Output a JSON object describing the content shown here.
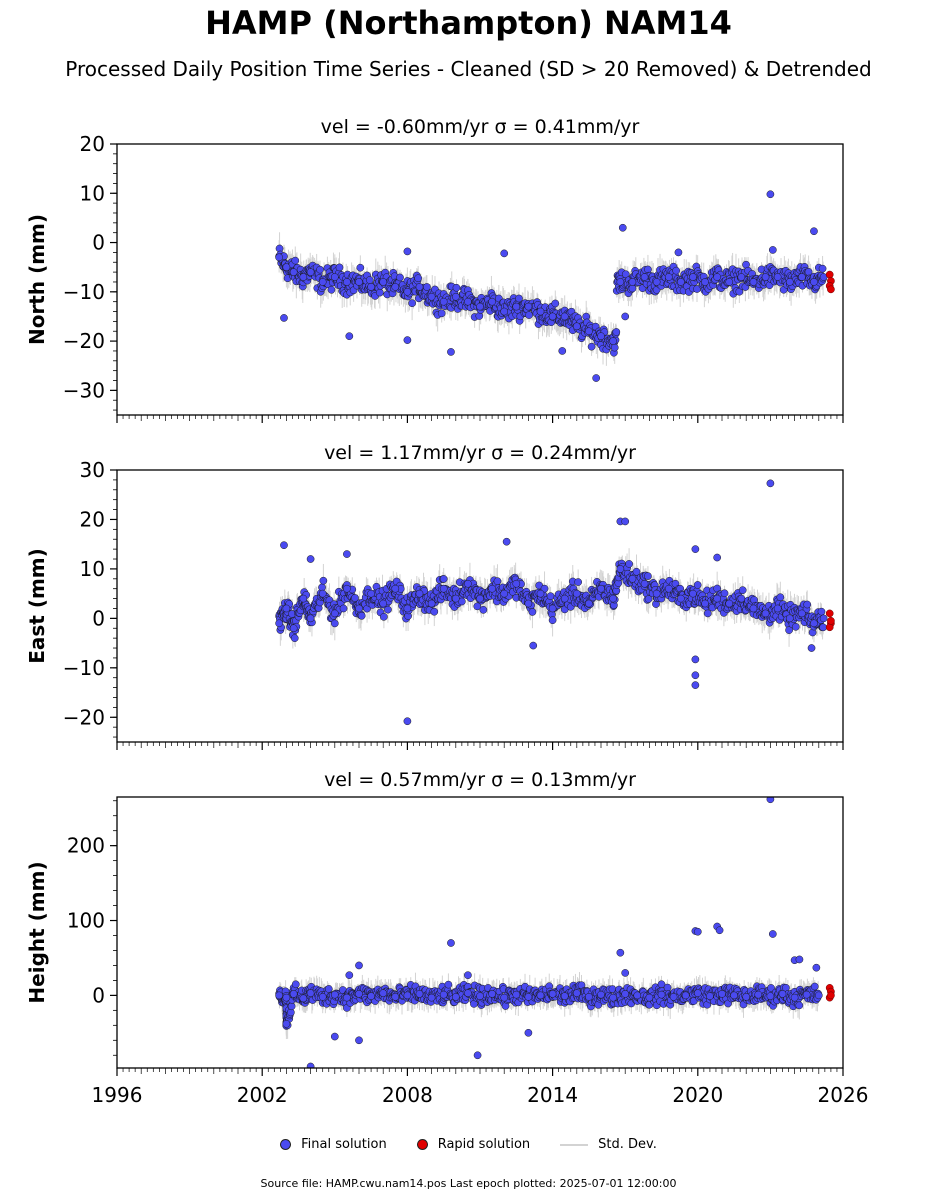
{
  "title": "HAMP (Northampton) NAM14",
  "subtitle": "Processed Daily Position Time Series - Cleaned (SD > 20 Removed) & Detrended",
  "source_note": "Source file: HAMP.cwu.nam14.pos  Last epoch plotted: 2025-07-01 12:00:00",
  "colors": {
    "final": "#4a4af0",
    "rapid": "#e00000",
    "stddev": "#d3d3d3",
    "edge": "#1a1a1a"
  },
  "chart_data": [
    {
      "type": "scatter",
      "title": "vel = -0.60mm/yr   σ = 0.41mm/yr",
      "ylabel": "North (mm)",
      "xlim": [
        1996,
        2026
      ],
      "ylim": [
        -35,
        20
      ],
      "xticks": [
        "",
        "",
        "",
        "",
        "",
        ""
      ],
      "yticks": [
        "20",
        "10",
        "0",
        "−10",
        "−20",
        "−30"
      ],
      "ytick_values": [
        20,
        10,
        0,
        -10,
        -20,
        -30
      ],
      "series": [
        {
          "name": "Final solution",
          "points": [
            [
              2002.7,
              -3
            ],
            [
              2003.0,
              -5
            ],
            [
              2003.3,
              -6
            ],
            [
              2003.7,
              -7
            ],
            [
              2004.0,
              -6
            ],
            [
              2004.5,
              -8
            ],
            [
              2005.0,
              -7
            ],
            [
              2005.5,
              -8
            ],
            [
              2006.0,
              -8
            ],
            [
              2006.5,
              -9
            ],
            [
              2007.0,
              -8
            ],
            [
              2007.5,
              -9
            ],
            [
              2008.0,
              -10
            ],
            [
              2008.5,
              -9
            ],
            [
              2009.0,
              -11
            ],
            [
              2009.5,
              -12
            ],
            [
              2010.0,
              -11
            ],
            [
              2010.5,
              -12
            ],
            [
              2011.0,
              -13
            ],
            [
              2011.5,
              -12
            ],
            [
              2012.0,
              -14
            ],
            [
              2012.5,
              -13
            ],
            [
              2013.0,
              -13
            ],
            [
              2013.5,
              -14
            ],
            [
              2014.0,
              -15
            ],
            [
              2014.5,
              -15
            ],
            [
              2015.0,
              -17
            ],
            [
              2015.5,
              -18
            ],
            [
              2016.0,
              -19
            ],
            [
              2016.5,
              -20
            ],
            [
              2016.8,
              -8
            ],
            [
              2017.3,
              -8
            ],
            [
              2017.8,
              -7
            ],
            [
              2018.3,
              -8
            ],
            [
              2018.8,
              -7
            ],
            [
              2019.3,
              -8
            ],
            [
              2019.8,
              -7
            ],
            [
              2020.3,
              -8
            ],
            [
              2020.8,
              -7
            ],
            [
              2021.3,
              -8
            ],
            [
              2021.8,
              -7
            ],
            [
              2022.3,
              -8
            ],
            [
              2022.8,
              -7
            ],
            [
              2023.3,
              -7
            ],
            [
              2023.8,
              -8
            ],
            [
              2024.3,
              -7
            ],
            [
              2024.8,
              -8
            ],
            [
              2025.2,
              -7
            ],
            [
              2002.9,
              -15.3
            ],
            [
              2008.0,
              -19.8
            ],
            [
              2009.8,
              -22.2
            ],
            [
              2012.0,
              -2.2
            ],
            [
              2014.4,
              -22
            ],
            [
              2015.8,
              -27.5
            ],
            [
              2016.9,
              3
            ],
            [
              2019.2,
              -2
            ],
            [
              2023.0,
              9.8
            ],
            [
              2023.1,
              -1.5
            ],
            [
              2024.8,
              2.3
            ],
            [
              2005.6,
              -19
            ],
            [
              2008.0,
              -1.8
            ],
            [
              2017.0,
              -15
            ]
          ]
        },
        {
          "name": "Rapid solution",
          "points": [
            [
              2025.45,
              -6.5
            ],
            [
              2025.5,
              -7.8
            ],
            [
              2025.45,
              -8.8
            ],
            [
              2025.5,
              -9.5
            ]
          ]
        }
      ]
    },
    {
      "type": "scatter",
      "title": "vel = 1.17mm/yr   σ = 0.24mm/yr",
      "ylabel": "East (mm)",
      "xlim": [
        1996,
        2026
      ],
      "ylim": [
        -25,
        30
      ],
      "xticks": [
        "",
        "",
        "",
        "",
        "",
        ""
      ],
      "yticks": [
        "30",
        "20",
        "10",
        "0",
        "−10",
        "−20"
      ],
      "ytick_values": [
        30,
        20,
        10,
        0,
        -10,
        -20
      ],
      "series": [
        {
          "name": "Final solution",
          "points": [
            [
              2002.7,
              -1
            ],
            [
              2003.0,
              2
            ],
            [
              2003.3,
              -2
            ],
            [
              2003.7,
              4
            ],
            [
              2004.0,
              0
            ],
            [
              2004.5,
              5
            ],
            [
              2005.0,
              1
            ],
            [
              2005.5,
              6
            ],
            [
              2006.0,
              2
            ],
            [
              2006.5,
              5
            ],
            [
              2007.0,
              3
            ],
            [
              2007.5,
              6
            ],
            [
              2008.0,
              2
            ],
            [
              2008.5,
              5
            ],
            [
              2009.0,
              3
            ],
            [
              2009.5,
              6
            ],
            [
              2010.0,
              4
            ],
            [
              2010.5,
              7
            ],
            [
              2011.0,
              4
            ],
            [
              2011.5,
              6
            ],
            [
              2012.0,
              5
            ],
            [
              2012.5,
              7
            ],
            [
              2013.0,
              3
            ],
            [
              2013.5,
              5
            ],
            [
              2014.0,
              2
            ],
            [
              2014.5,
              4
            ],
            [
              2015.0,
              5
            ],
            [
              2015.5,
              3
            ],
            [
              2016.0,
              6
            ],
            [
              2016.5,
              4
            ],
            [
              2016.8,
              10
            ],
            [
              2017.3,
              8
            ],
            [
              2017.8,
              7
            ],
            [
              2018.3,
              5
            ],
            [
              2018.8,
              6
            ],
            [
              2019.3,
              4
            ],
            [
              2019.8,
              5
            ],
            [
              2020.3,
              3
            ],
            [
              2020.8,
              4
            ],
            [
              2021.3,
              3
            ],
            [
              2021.8,
              4
            ],
            [
              2022.3,
              2
            ],
            [
              2022.8,
              1
            ],
            [
              2023.3,
              2
            ],
            [
              2023.8,
              0
            ],
            [
              2024.3,
              1
            ],
            [
              2024.8,
              -1
            ],
            [
              2025.2,
              0
            ],
            [
              2002.9,
              14.8
            ],
            [
              2004.0,
              12
            ],
            [
              2005.5,
              13
            ],
            [
              2008.0,
              -20.8
            ],
            [
              2012.1,
              15.5
            ],
            [
              2013.2,
              -5.5
            ],
            [
              2016.8,
              19.6
            ],
            [
              2017.0,
              19.6
            ],
            [
              2019.9,
              14
            ],
            [
              2019.9,
              -8.3
            ],
            [
              2019.9,
              -11.5
            ],
            [
              2019.9,
              -13.5
            ],
            [
              2020.8,
              12.3
            ],
            [
              2023.0,
              27.3
            ],
            [
              2024.7,
              -6
            ]
          ]
        },
        {
          "name": "Rapid solution",
          "points": [
            [
              2025.45,
              1
            ],
            [
              2025.5,
              -1
            ],
            [
              2025.45,
              -1.8
            ],
            [
              2025.5,
              -0.5
            ]
          ]
        }
      ]
    },
    {
      "type": "scatter",
      "title": "vel = 0.57mm/yr   σ = 0.13mm/yr",
      "ylabel": "Height (mm)",
      "xlim": [
        1996,
        2026
      ],
      "ylim": [
        -97,
        265
      ],
      "xticks": [
        "1996",
        "2002",
        "2008",
        "2014",
        "2020",
        "2026"
      ],
      "yticks": [
        "200",
        "100",
        "0"
      ],
      "ytick_values": [
        200,
        100,
        0
      ],
      "series": [
        {
          "name": "Final solution",
          "points": [
            [
              2002.7,
              0
            ],
            [
              2003.0,
              -3
            ],
            [
              2003.3,
              2
            ],
            [
              2003.7,
              -4
            ],
            [
              2004.0,
              3
            ],
            [
              2004.5,
              -2
            ],
            [
              2005.0,
              1
            ],
            [
              2005.5,
              -3
            ],
            [
              2006.0,
              2
            ],
            [
              2006.5,
              -1
            ],
            [
              2007.0,
              3
            ],
            [
              2007.5,
              -2
            ],
            [
              2008.0,
              0
            ],
            [
              2008.5,
              2
            ],
            [
              2009.0,
              -3
            ],
            [
              2009.5,
              1
            ],
            [
              2010.0,
              -2
            ],
            [
              2010.5,
              3
            ],
            [
              2011.0,
              -1
            ],
            [
              2011.5,
              2
            ],
            [
              2012.0,
              -3
            ],
            [
              2012.5,
              1
            ],
            [
              2013.0,
              -2
            ],
            [
              2013.5,
              0
            ],
            [
              2014.0,
              2
            ],
            [
              2014.5,
              -1
            ],
            [
              2015.0,
              3
            ],
            [
              2015.5,
              -2
            ],
            [
              2016.0,
              1
            ],
            [
              2016.5,
              -3
            ],
            [
              2017.0,
              2
            ],
            [
              2017.5,
              0
            ],
            [
              2018.0,
              -3
            ],
            [
              2018.5,
              1
            ],
            [
              2019.0,
              -2
            ],
            [
              2019.5,
              0
            ],
            [
              2020.0,
              3
            ],
            [
              2020.5,
              -1
            ],
            [
              2021.0,
              2
            ],
            [
              2021.5,
              0
            ],
            [
              2022.0,
              -2
            ],
            [
              2022.5,
              1
            ],
            [
              2023.0,
              -1
            ],
            [
              2023.5,
              2
            ],
            [
              2024.0,
              -3
            ],
            [
              2024.5,
              1
            ],
            [
              2025.0,
              0
            ],
            [
              2003.0,
              -38
            ],
            [
              2004.0,
              -95
            ],
            [
              2005.0,
              -55
            ],
            [
              2006.0,
              -60
            ],
            [
              2005.6,
              27
            ],
            [
              2006.0,
              40
            ],
            [
              2009.8,
              70
            ],
            [
              2010.5,
              27
            ],
            [
              2010.9,
              -80
            ],
            [
              2013.0,
              -50
            ],
            [
              2016.8,
              57
            ],
            [
              2017.0,
              30
            ],
            [
              2019.9,
              86
            ],
            [
              2020.0,
              85
            ],
            [
              2020.8,
              92
            ],
            [
              2020.9,
              87
            ],
            [
              2023.0,
              262
            ],
            [
              2023.1,
              82
            ],
            [
              2024.0,
              47
            ],
            [
              2024.2,
              48
            ],
            [
              2024.9,
              37
            ]
          ]
        },
        {
          "name": "Rapid solution",
          "points": [
            [
              2025.45,
              10
            ],
            [
              2025.5,
              5
            ],
            [
              2025.45,
              -3
            ],
            [
              2025.5,
              0
            ]
          ]
        }
      ]
    }
  ],
  "legend": [
    {
      "label": "Final solution",
      "marker": "dot",
      "color": "#4a4af0"
    },
    {
      "label": "Rapid solution",
      "marker": "dot",
      "color": "#e00000"
    },
    {
      "label": "Std. Dev.",
      "marker": "line",
      "color": "#d3d3d3"
    }
  ]
}
